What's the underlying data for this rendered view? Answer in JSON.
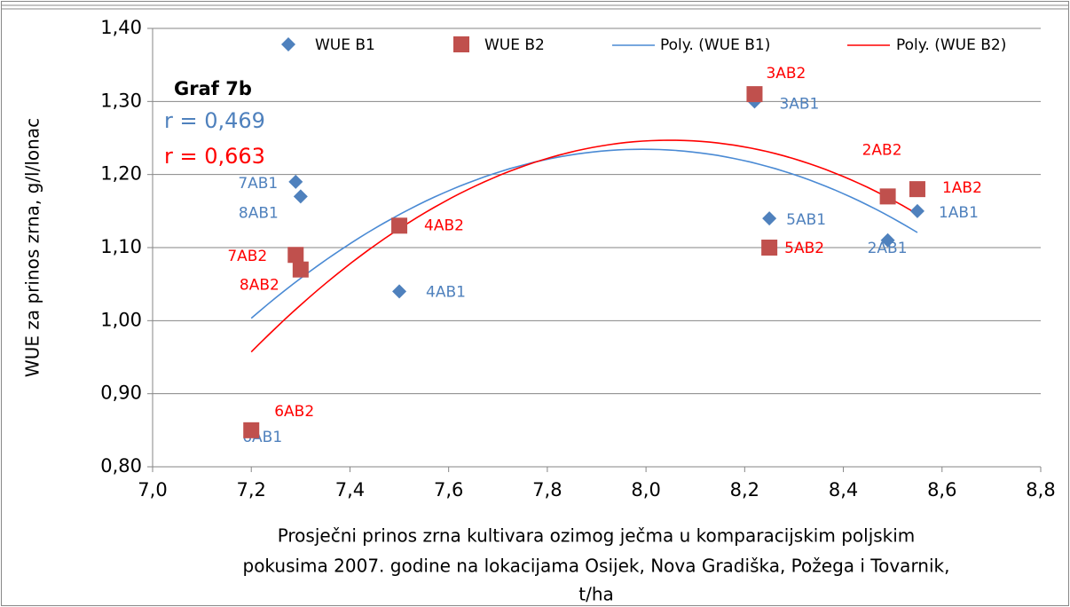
{
  "chart_data": {
    "type": "scatter",
    "annotations": [
      "Graf 7b",
      "r = 0,469",
      "r = 0,663"
    ],
    "y_label": "WUE za prinos zrna, g/l/lonac",
    "x_label": [
      "Prosječni prinos zrna kultivara ozimog ječma u komparacijskim poljskim",
      "pokusima 2007. godine na lokacijama Osijek, Nova Gradiška, Požega i Tovarnik,",
      "t/ha"
    ],
    "xlim": [
      7.0,
      8.8
    ],
    "xticks": [
      {
        "value": 7.0,
        "label": "7,0"
      },
      {
        "value": 7.2,
        "label": "7,2"
      },
      {
        "value": 7.4,
        "label": "7,4"
      },
      {
        "value": 7.6,
        "label": "7,6"
      },
      {
        "value": 7.8,
        "label": "7,8"
      },
      {
        "value": 8.0,
        "label": "8,0"
      },
      {
        "value": 8.2,
        "label": "8,2"
      },
      {
        "value": 8.4,
        "label": "8,4"
      },
      {
        "value": 8.6,
        "label": "8,6"
      },
      {
        "value": 8.8,
        "label": "8,8"
      }
    ],
    "ylim": [
      0.8,
      1.4
    ],
    "yticks": [
      {
        "value": 0.8,
        "label": "0,80"
      },
      {
        "value": 0.9,
        "label": "0,90"
      },
      {
        "value": 1.0,
        "label": "1,00"
      },
      {
        "value": 1.1,
        "label": "1,10"
      },
      {
        "value": 1.2,
        "label": "1,20"
      },
      {
        "value": 1.3,
        "label": "1,30"
      },
      {
        "value": 1.4,
        "label": "1,40"
      }
    ],
    "grid": true,
    "series": [
      {
        "name": "WUE B1",
        "color": "#4f81bd",
        "marker": "diamond",
        "label_color": "#4f81bd",
        "x": [
          8.55,
          8.49,
          8.22,
          7.5,
          8.25,
          7.2,
          7.29,
          7.3
        ],
        "values": [
          1.15,
          1.11,
          1.3,
          1.04,
          1.14,
          0.85,
          1.19,
          1.17
        ],
        "point_labels": [
          "1AB1",
          "2AB1",
          "3AB1",
          "4AB1",
          "5AB1",
          "6AB1",
          "7AB1",
          "8AB1"
        ]
      },
      {
        "name": "WUE B2",
        "color": "#c0504d",
        "marker": "square",
        "label_color": "#ff0000",
        "x": [
          8.55,
          8.49,
          8.22,
          7.5,
          8.25,
          7.2,
          7.29,
          7.3
        ],
        "values": [
          1.18,
          1.17,
          1.31,
          1.13,
          1.1,
          0.85,
          1.09,
          1.07
        ],
        "point_labels": [
          "1AB2",
          "2AB2",
          "3AB2",
          "4AB2",
          "5AB2",
          "6AB2",
          "7AB2",
          "8AB2"
        ]
      }
    ],
    "trendlines": [
      {
        "name": "Poly. (WUE B1)",
        "color": "#4a8ad4",
        "order": 2
      },
      {
        "name": "Poly. (WUE B2)",
        "color": "#ff0000",
        "order": 2
      }
    ]
  }
}
